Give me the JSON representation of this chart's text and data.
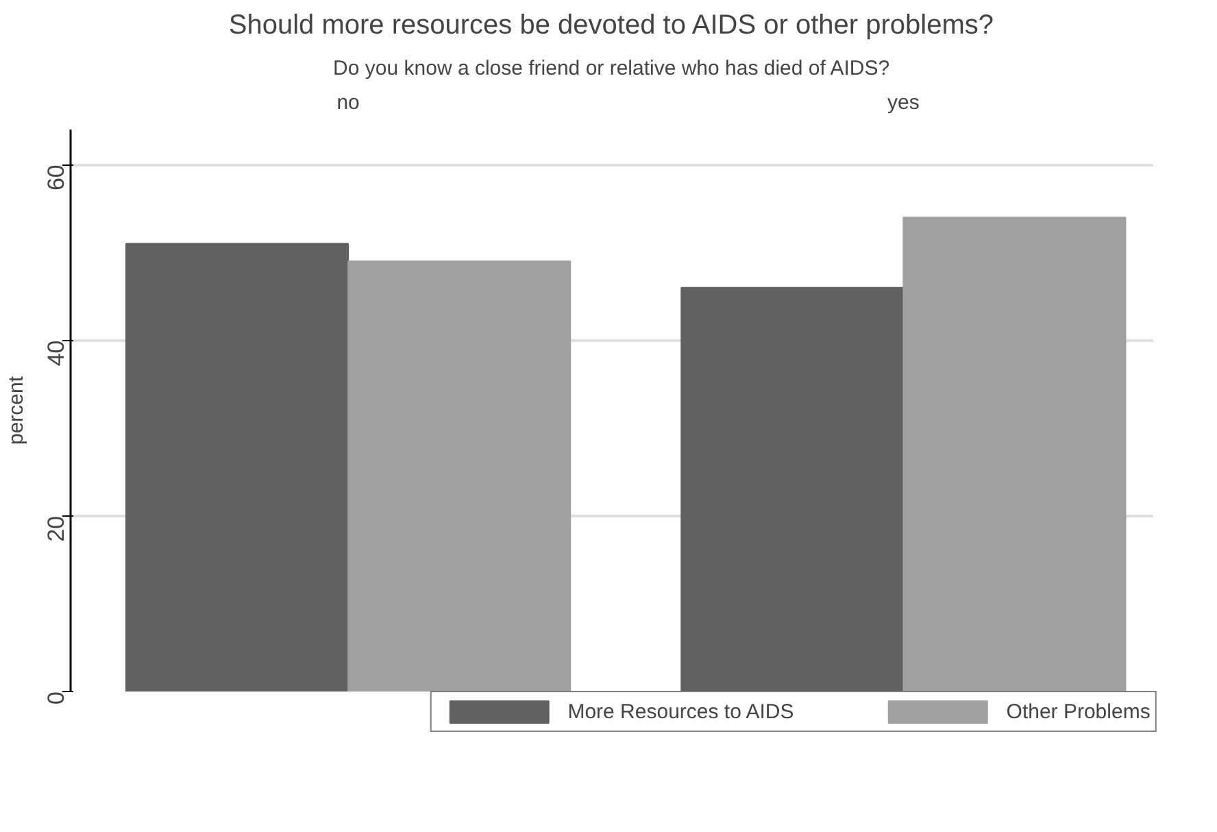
{
  "chart_data": {
    "type": "bar",
    "title": "Should more resources be devoted to AIDS or other problems?",
    "subtitle": "Do you know a close friend or relative who has died of AIDS?",
    "ylabel": "percent",
    "categories": [
      "no",
      "yes"
    ],
    "series": [
      {
        "name": "More Resources to AIDS",
        "color": "#606060",
        "values": [
          51,
          46
        ]
      },
      {
        "name": "Other Problems",
        "color": "#a0a0a0",
        "values": [
          49,
          54
        ]
      }
    ],
    "ylim": [
      0,
      64
    ],
    "yticks": [
      0,
      20,
      40,
      60
    ],
    "grid": "y",
    "legend": "bottom"
  }
}
